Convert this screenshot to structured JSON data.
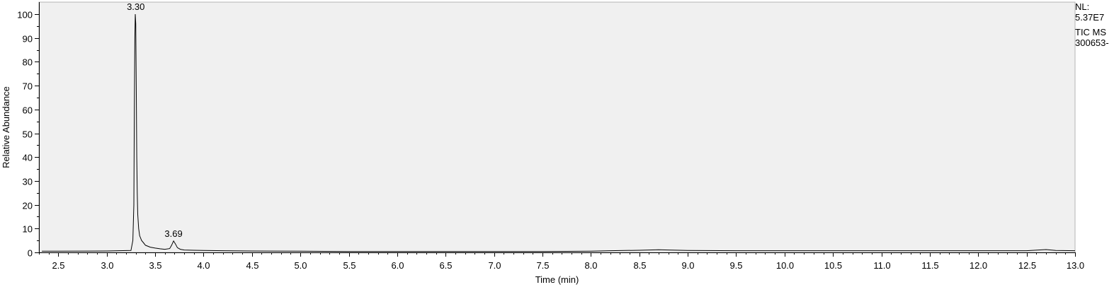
{
  "chart_data": {
    "type": "line",
    "title": "",
    "xlabel": "Time (min)",
    "ylabel": "Relative Abundance",
    "xlim": [
      2.3,
      13.0
    ],
    "ylim": [
      0,
      100
    ],
    "x_ticks": [
      2.5,
      3.0,
      3.5,
      4.0,
      4.5,
      5.0,
      5.5,
      6.0,
      6.5,
      7.0,
      7.5,
      8.0,
      8.5,
      9.0,
      9.5,
      10.0,
      10.5,
      11.0,
      11.5,
      12.0,
      12.5,
      13.0
    ],
    "x_tick_labels": [
      "2.5",
      "3.0",
      "3.5",
      "4.0",
      "4.5",
      "5.0",
      "5.5",
      "6.0",
      "6.5",
      "7.0",
      "7.5",
      "8.0",
      "8.5",
      "9.0",
      "9.5",
      "10.0",
      "10.5",
      "11.0",
      "11.5",
      "12.0",
      "12.5",
      "13.0"
    ],
    "y_ticks": [
      0,
      10,
      20,
      30,
      40,
      50,
      60,
      70,
      80,
      90,
      100
    ],
    "y_tick_labels": [
      "0",
      "10",
      "20",
      "30",
      "40",
      "50",
      "60",
      "70",
      "80",
      "90",
      "100"
    ],
    "series": [
      {
        "name": "TIC MS",
        "x": [
          2.33,
          2.5,
          3.0,
          3.25,
          3.27,
          3.28,
          3.285,
          3.29,
          3.295,
          3.3,
          3.305,
          3.31,
          3.315,
          3.32,
          3.33,
          3.34,
          3.36,
          3.38,
          3.4,
          3.45,
          3.5,
          3.55,
          3.6,
          3.65,
          3.67,
          3.69,
          3.71,
          3.73,
          3.76,
          3.8,
          3.9,
          4.0,
          4.2,
          4.5,
          5.0,
          5.5,
          6.0,
          6.5,
          7.0,
          7.5,
          8.0,
          8.2,
          8.5,
          8.7,
          8.8,
          9.0,
          9.5,
          10.0,
          10.5,
          11.0,
          11.5,
          12.0,
          12.5,
          12.7,
          12.8,
          13.0
        ],
        "y": [
          0.5,
          0.5,
          0.6,
          0.8,
          5,
          20,
          60,
          90,
          100,
          96,
          70,
          40,
          25,
          16,
          10,
          7,
          5,
          4,
          3,
          2.2,
          1.8,
          1.5,
          1.3,
          1.6,
          3,
          4.8,
          3.5,
          2,
          1.3,
          1.0,
          0.9,
          0.8,
          0.7,
          0.6,
          0.5,
          0.4,
          0.4,
          0.4,
          0.4,
          0.4,
          0.5,
          0.7,
          0.9,
          1.1,
          1.0,
          0.8,
          0.7,
          0.7,
          0.7,
          0.7,
          0.7,
          0.7,
          0.7,
          1.2,
          0.8,
          0.7
        ]
      }
    ],
    "peak_labels": [
      {
        "x": 3.3,
        "y": 100,
        "text": "3.30"
      },
      {
        "x": 3.69,
        "y": 4.8,
        "text": "3.69"
      }
    ],
    "grid": false,
    "legend": "none"
  },
  "info": {
    "nl_label": "NL:",
    "nl_value": "5.37E7",
    "trace_label": "TIC  MS",
    "file_name": "300653-"
  },
  "colors": {
    "plot_background": "#f0f0f0",
    "axis": "#000000",
    "trace": "#000000"
  }
}
